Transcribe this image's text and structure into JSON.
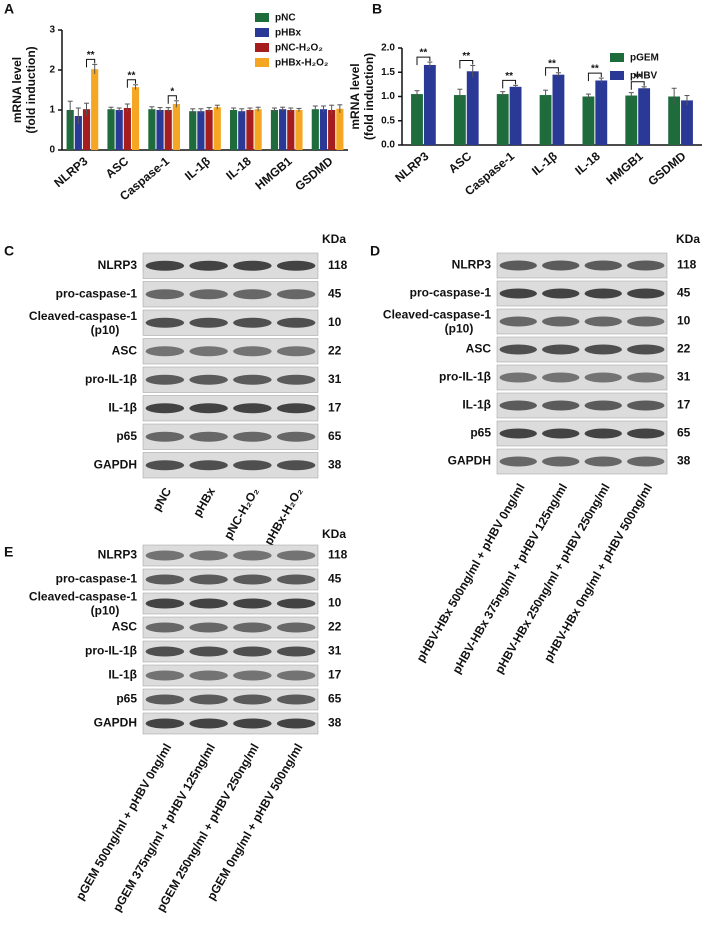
{
  "chart_data": [
    {
      "type": "bar",
      "panel": "A",
      "ylabel": [
        "mRNA level",
        "(fold induction)"
      ],
      "categories": [
        "NLRP3",
        "ASC",
        "Caspase-1",
        "IL-1β",
        "IL-18",
        "HMGB1",
        "GSDMD"
      ],
      "series": [
        {
          "name": "pNC",
          "color": "#1e6b3c",
          "values": [
            1.0,
            1.02,
            1.02,
            0.97,
            1.0,
            1.0,
            1.02
          ],
          "errors": [
            0.22,
            0.05,
            0.06,
            0.06,
            0.05,
            0.05,
            0.08
          ]
        },
        {
          "name": "pHBx",
          "color": "#2a3896",
          "values": [
            0.85,
            1.0,
            1.0,
            0.97,
            0.97,
            1.02,
            1.02
          ],
          "errors": [
            0.2,
            0.05,
            0.06,
            0.06,
            0.06,
            0.05,
            0.08
          ]
        },
        {
          "name": "pNC-H₂O₂",
          "color": "#a51d1d",
          "values": [
            1.02,
            1.05,
            1.0,
            1.0,
            1.0,
            1.0,
            1.0
          ],
          "errors": [
            0.15,
            0.1,
            0.06,
            0.06,
            0.05,
            0.05,
            0.12
          ]
        },
        {
          "name": "pHBx-H₂O₂",
          "color": "#f5a623",
          "values": [
            2.02,
            1.57,
            1.15,
            1.07,
            1.02,
            1.0,
            1.03
          ],
          "errors": [
            0.12,
            0.06,
            0.08,
            0.05,
            0.05,
            0.04,
            0.1
          ]
        }
      ],
      "ylim": [
        0,
        3
      ],
      "yticks": [
        0,
        1,
        2,
        3
      ],
      "legend": "top-right",
      "annotations": [
        {
          "category": "NLRP3",
          "text": "**",
          "pair": [
            "pNC-H₂O₂",
            "pHBx-H₂O₂"
          ]
        },
        {
          "category": "ASC",
          "text": "**",
          "pair": [
            "pNC-H₂O₂",
            "pHBx-H₂O₂"
          ]
        },
        {
          "category": "Caspase-1",
          "text": "*",
          "pair": [
            "pNC-H₂O₂",
            "pHBx-H₂O₂"
          ]
        }
      ]
    },
    {
      "type": "bar",
      "panel": "B",
      "ylabel": [
        "mRNA level",
        "(fold induction)"
      ],
      "categories": [
        "NLRP3",
        "ASC",
        "Caspase-1",
        "IL-1β",
        "IL-18",
        "HMGB1",
        "GSDMD"
      ],
      "series": [
        {
          "name": "pGEM",
          "color": "#1e6b3c",
          "values": [
            1.05,
            1.03,
            1.05,
            1.03,
            1.0,
            1.02,
            1.0
          ],
          "errors": [
            0.07,
            0.12,
            0.05,
            0.1,
            0.05,
            0.06,
            0.17
          ]
        },
        {
          "name": "pHBV",
          "color": "#2a3896",
          "values": [
            1.65,
            1.52,
            1.2,
            1.45,
            1.33,
            1.17,
            0.92
          ],
          "errors": [
            0.06,
            0.12,
            0.03,
            0.04,
            0.05,
            0.03,
            0.1
          ]
        }
      ],
      "ylim": [
        0,
        2
      ],
      "yticks": [
        {
          "value": 0,
          "label": "0.0"
        },
        {
          "value": 0.5,
          "label": "0.5"
        },
        {
          "value": 1,
          "label": "1.0"
        },
        {
          "value": 1.5,
          "label": "1.5"
        },
        {
          "value": 2,
          "label": "2.0"
        }
      ],
      "legend": "top-right",
      "annotations": [
        {
          "category": "NLRP3",
          "text": "**",
          "pair": [
            "pGEM",
            "pHBV"
          ]
        },
        {
          "category": "ASC",
          "text": "**",
          "pair": [
            "pGEM",
            "pHBV"
          ]
        },
        {
          "category": "Caspase-1",
          "text": "**",
          "pair": [
            "pGEM",
            "pHBV"
          ]
        },
        {
          "category": "IL-1β",
          "text": "**",
          "pair": [
            "pGEM",
            "pHBV"
          ]
        },
        {
          "category": "IL-18",
          "text": "**",
          "pair": [
            "pGEM",
            "pHBV"
          ]
        },
        {
          "category": "HMGB1",
          "text": "**",
          "pair": [
            "pGEM",
            "pHBV"
          ]
        }
      ]
    }
  ],
  "blots": [
    {
      "panel": "C",
      "unit_header": "KDa",
      "rows": [
        {
          "label": "NLRP3",
          "kda": 118
        },
        {
          "label": "pro-caspase-1",
          "kda": 45
        },
        {
          "label": "Cleaved-caspase-1",
          "sublabel": "(p10)",
          "kda": 10
        },
        {
          "label": "ASC",
          "kda": 22
        },
        {
          "label": "pro-IL-1β",
          "kda": 31
        },
        {
          "label": "IL-1β",
          "kda": 17
        },
        {
          "label": "p65",
          "kda": 65
        },
        {
          "label": "GAPDH",
          "kda": 38
        }
      ],
      "lanes": [
        "pNC",
        "pHBx",
        "pNC-H₂O₂",
        "pHBx-H₂O₂"
      ]
    },
    {
      "panel": "D",
      "unit_header": "KDa",
      "rows": [
        {
          "label": "NLRP3",
          "kda": 118
        },
        {
          "label": "pro-caspase-1",
          "kda": 45
        },
        {
          "label": "Cleaved-caspase-1",
          "sublabel": "(p10)",
          "kda": 10
        },
        {
          "label": "ASC",
          "kda": 22
        },
        {
          "label": "pro-IL-1β",
          "kda": 31
        },
        {
          "label": "IL-1β",
          "kda": 17
        },
        {
          "label": "p65",
          "kda": 65
        },
        {
          "label": "GAPDH",
          "kda": 38
        }
      ],
      "lanes": [
        "pHBV-HBx 500ng/ml + pHBV 0ng/ml",
        "pHBV-HBx 375ng/ml + pHBV 125ng/ml",
        "pHBV-HBx 250ng/ml + pHBV 250ng/ml",
        "pHBV-HBx 0ng/ml + pHBV 500ng/ml"
      ]
    },
    {
      "panel": "E",
      "unit_header": "KDa",
      "rows": [
        {
          "label": "NLRP3",
          "kda": 118
        },
        {
          "label": "pro-caspase-1",
          "kda": 45
        },
        {
          "label": "Cleaved-caspase-1",
          "sublabel": "(p10)",
          "kda": 10
        },
        {
          "label": "ASC",
          "kda": 22
        },
        {
          "label": "pro-IL-1β",
          "kda": 31
        },
        {
          "label": "IL-1β",
          "kda": 17
        },
        {
          "label": "p65",
          "kda": 65
        },
        {
          "label": "GAPDH",
          "kda": 38
        }
      ],
      "lanes": [
        "pGEM 500ng/ml + pHBV 0ng/ml",
        "pGEM 375ng/ml + pHBV 125ng/ml",
        "pGEM 250ng/ml + pHBV 250ng/ml",
        "pGEM 0ng/ml + pHBV 500ng/ml"
      ]
    }
  ]
}
